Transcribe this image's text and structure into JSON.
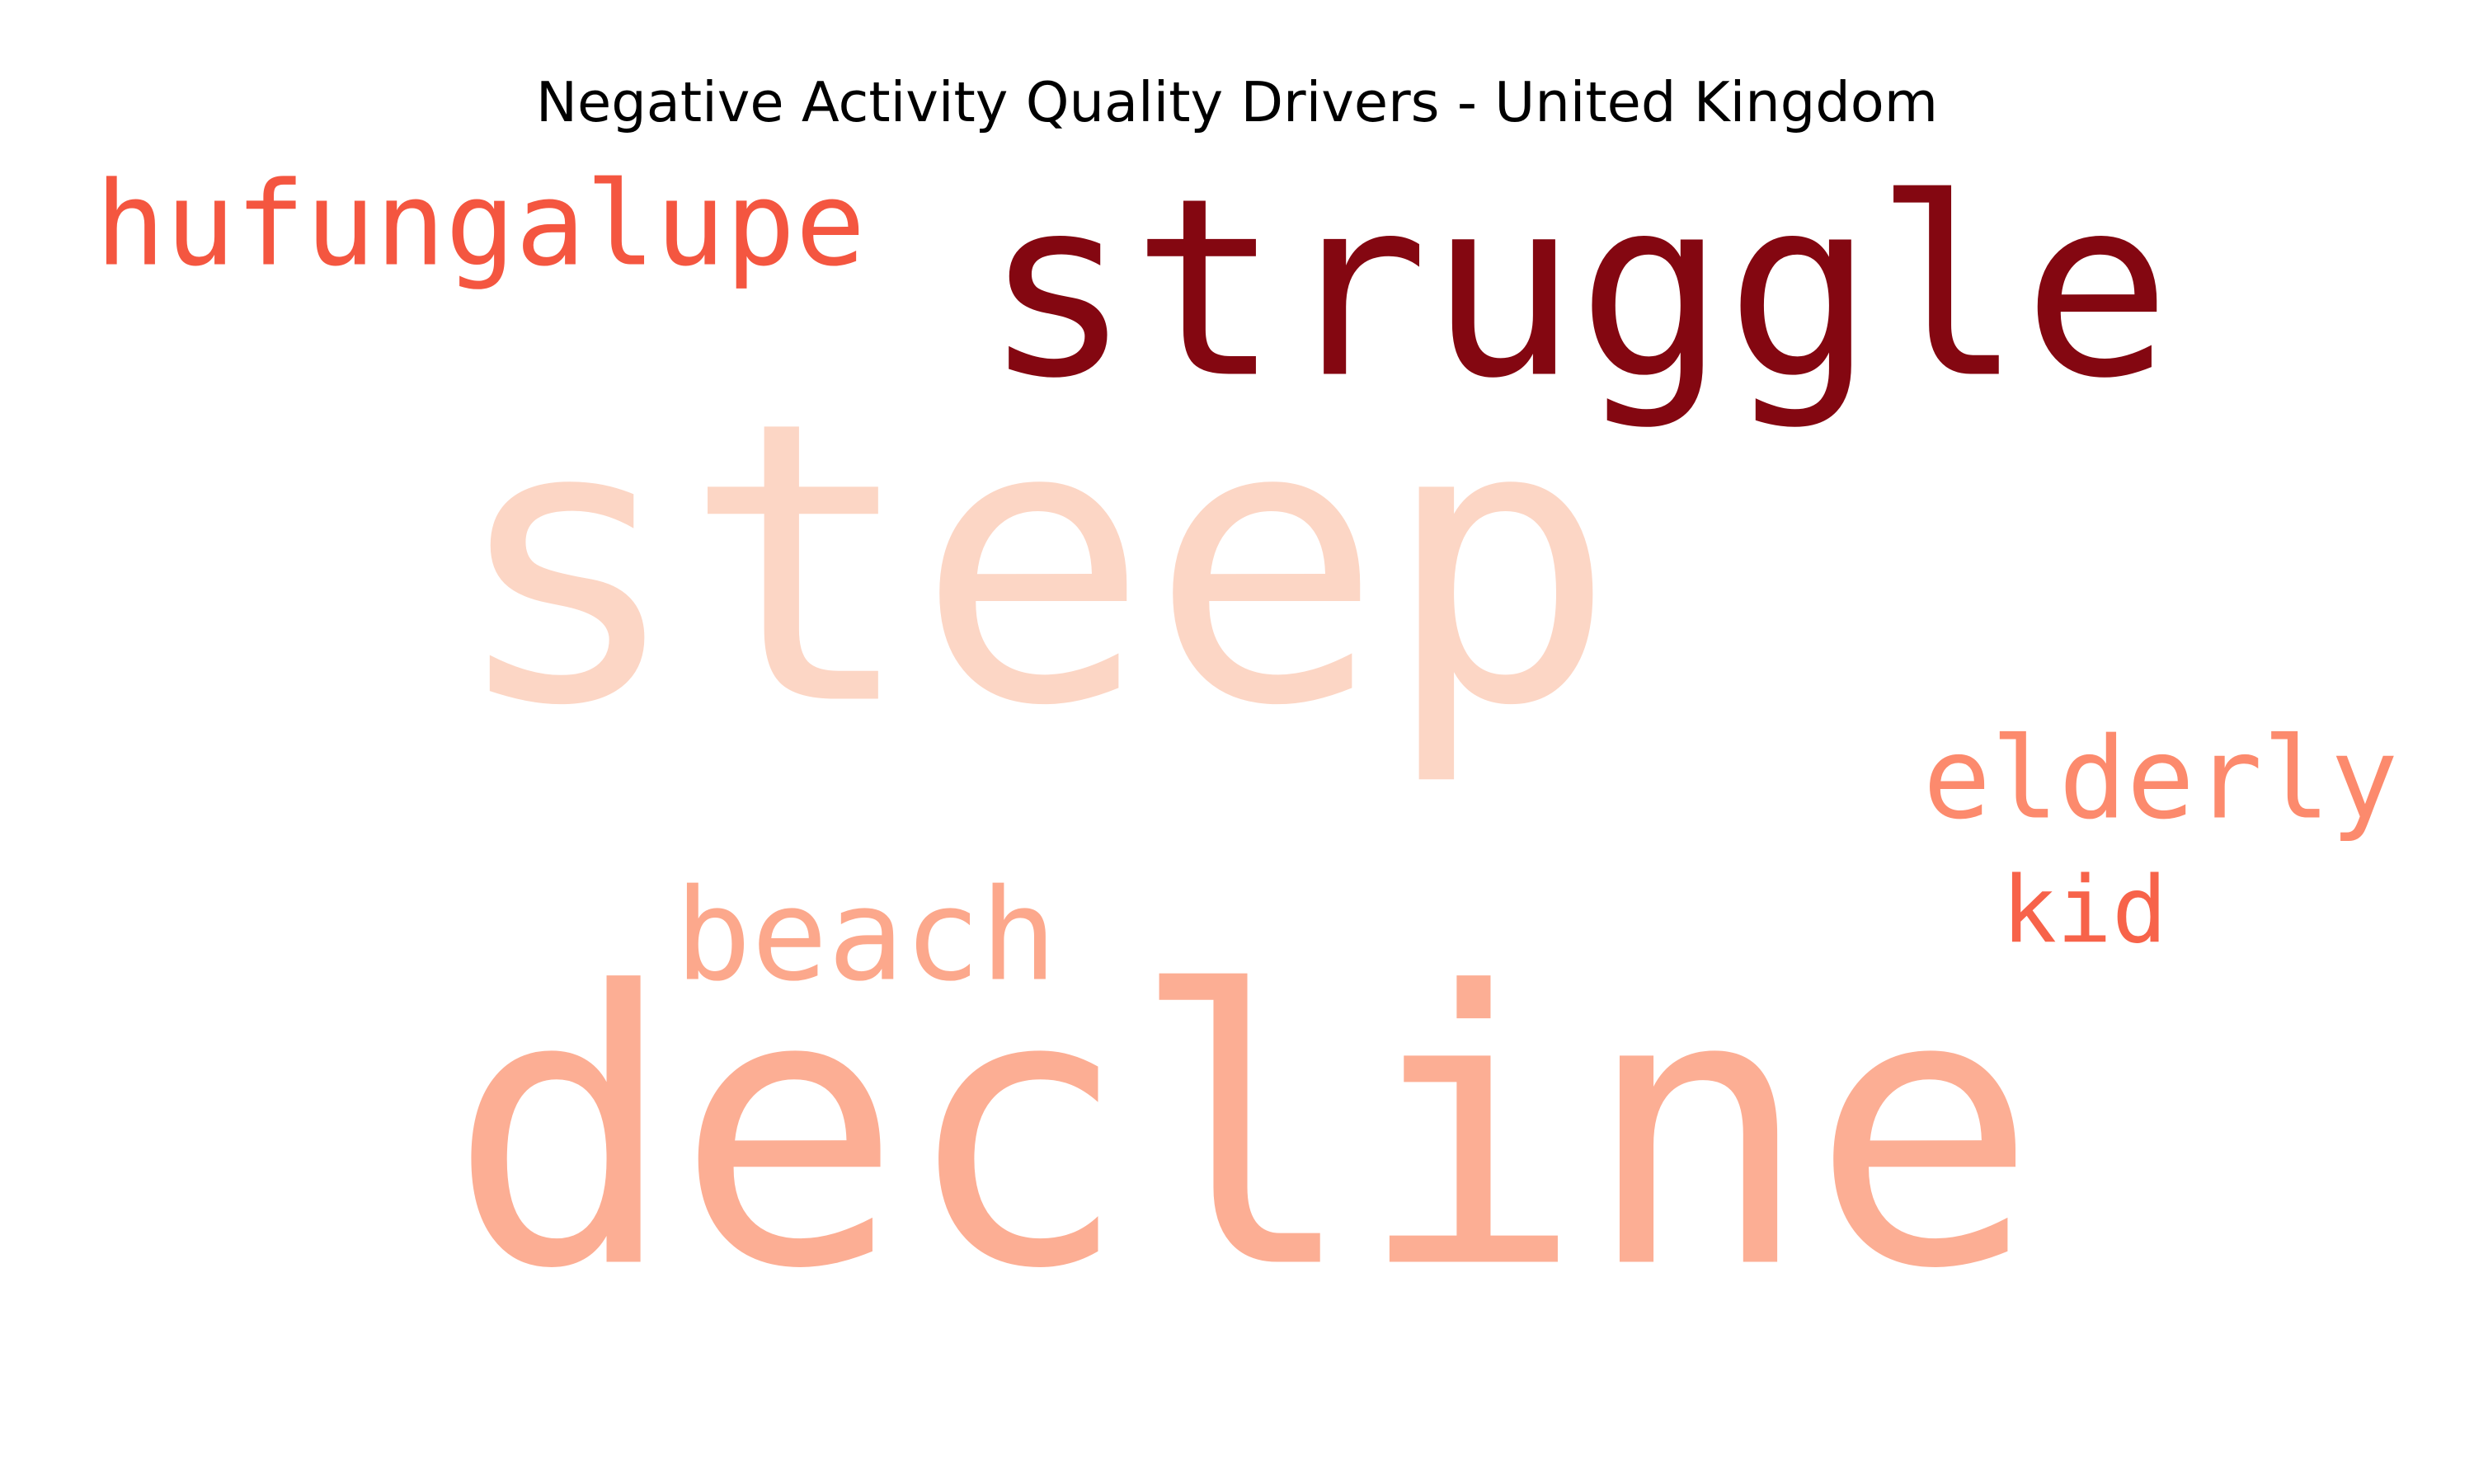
{
  "chart_data": {
    "type": "wordcloud",
    "title": "Negative Activity Quality Drivers - United Kingdom",
    "colormap": "Reds",
    "words": [
      {
        "text": "steep",
        "color": "#fcd6c5"
      },
      {
        "text": "decline",
        "color": "#fcae94"
      },
      {
        "text": "struggle",
        "color": "#840711"
      },
      {
        "text": "hufungalupe",
        "color": "#f45640"
      },
      {
        "text": "beach",
        "color": "#fca88c"
      },
      {
        "text": "elderly",
        "color": "#fc8a6d"
      },
      {
        "text": "kid",
        "color": "#f7634a"
      }
    ]
  }
}
